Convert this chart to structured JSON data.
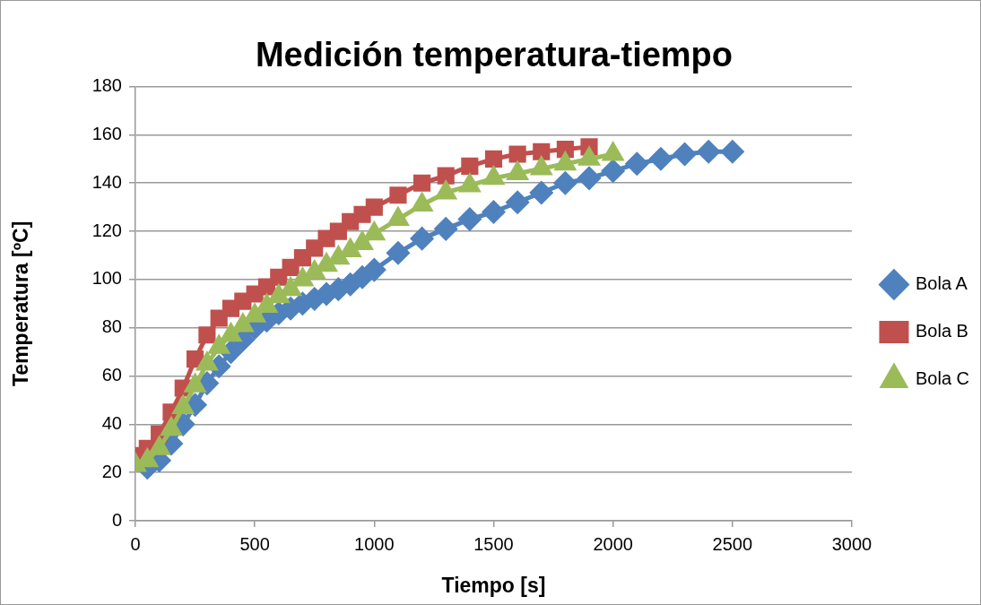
{
  "chart_data": {
    "type": "line",
    "title": "Medición temperatura-tiempo",
    "xlabel": "Tiempo [s]",
    "ylabel": "Temperatura [ºC]",
    "xlim": [
      0,
      3000
    ],
    "xticks": [
      0,
      500,
      1000,
      1500,
      2000,
      2500,
      3000
    ],
    "ylim": [
      0,
      180
    ],
    "yticks": [
      0,
      20,
      40,
      60,
      80,
      100,
      120,
      140,
      160,
      180
    ],
    "grid": "y",
    "legend": "right",
    "series": [
      {
        "name": "Bola A",
        "color": "#4f81bd",
        "marker": "diamond",
        "x": [
          50,
          100,
          150,
          200,
          250,
          300,
          350,
          400,
          450,
          500,
          550,
          600,
          650,
          700,
          750,
          800,
          850,
          900,
          950,
          1000,
          1100,
          1200,
          1300,
          1400,
          1500,
          1600,
          1700,
          1800,
          1900,
          2000,
          2100,
          2200,
          2300,
          2400,
          2500
        ],
        "values": [
          22,
          25,
          32,
          40,
          48,
          57,
          64,
          70,
          75,
          80,
          83,
          86,
          88,
          90,
          92,
          94,
          96,
          98,
          101,
          104,
          111,
          117,
          121,
          125,
          128,
          132,
          136,
          140,
          142,
          145,
          148,
          150,
          152,
          153,
          153
        ]
      },
      {
        "name": "Bola B",
        "color": "#c0504d",
        "marker": "square",
        "x": [
          0,
          50,
          100,
          150,
          200,
          250,
          300,
          350,
          400,
          450,
          500,
          550,
          600,
          650,
          700,
          750,
          800,
          850,
          900,
          950,
          1000,
          1100,
          1200,
          1300,
          1400,
          1500,
          1600,
          1700,
          1800,
          1900
        ],
        "values": [
          27,
          30,
          36,
          45,
          55,
          67,
          77,
          84,
          88,
          91,
          94,
          97,
          101,
          105,
          109,
          113,
          117,
          120,
          124,
          127,
          130,
          135,
          140,
          143,
          147,
          150,
          152,
          153,
          154,
          155
        ]
      },
      {
        "name": "Bola C",
        "color": "#9bbb59",
        "marker": "triangle",
        "x": [
          0,
          50,
          100,
          150,
          200,
          250,
          300,
          350,
          400,
          450,
          500,
          550,
          600,
          650,
          700,
          750,
          800,
          850,
          900,
          950,
          1000,
          1100,
          1200,
          1300,
          1400,
          1500,
          1600,
          1700,
          1800,
          1900,
          2000
        ],
        "values": [
          23,
          25,
          30,
          38,
          47,
          56,
          65,
          72,
          77,
          81,
          85,
          89,
          93,
          96,
          100,
          103,
          106,
          109,
          112,
          115,
          119,
          125,
          131,
          136,
          139,
          142,
          144,
          146,
          148,
          150,
          152
        ]
      }
    ]
  }
}
